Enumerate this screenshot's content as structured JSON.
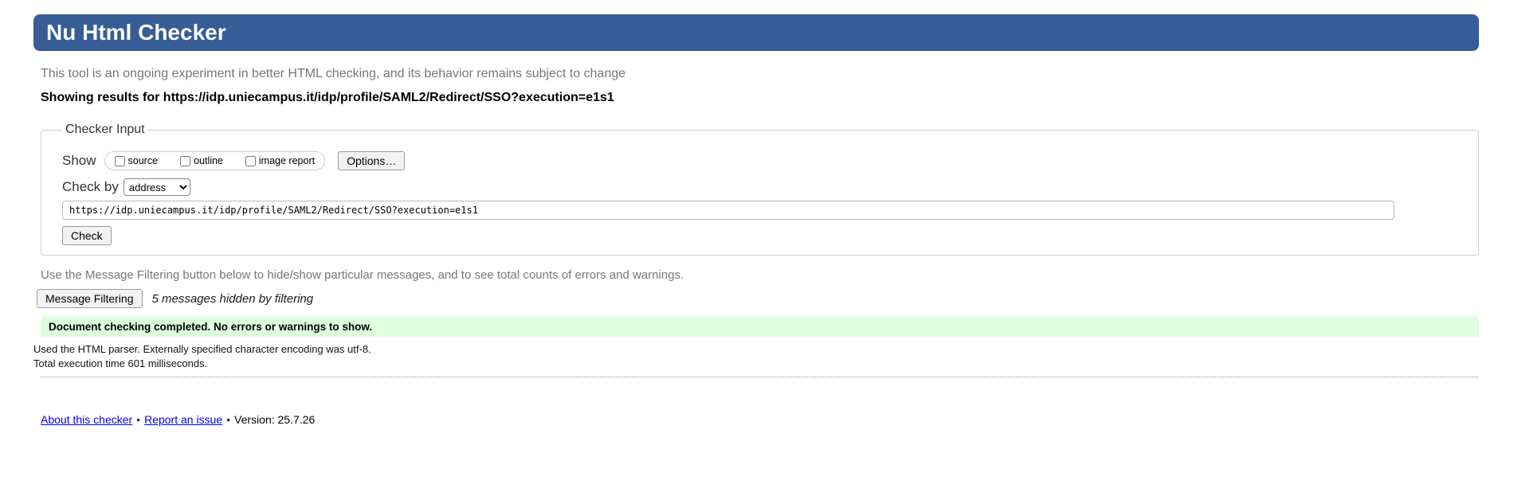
{
  "header": {
    "title": "Nu Html Checker",
    "bg_color": "#365d95"
  },
  "intro_text": "This tool is an ongoing experiment in better HTML checking, and its behavior remains subject to change",
  "results_heading": "Showing results for https://idp.uniecampus.it/idp/profile/SAML2/Redirect/SSO?execution=e1s1",
  "checker_input": {
    "legend": "Checker Input",
    "show_label": "Show",
    "show_options": [
      {
        "label": "source",
        "checked": false
      },
      {
        "label": "outline",
        "checked": false
      },
      {
        "label": "image report",
        "checked": false
      }
    ],
    "options_button_label": "Options…",
    "check_by_label": "Check by",
    "check_by_value": "address",
    "address_value": "https://idp.uniecampus.it/idp/profile/SAML2/Redirect/SSO?execution=e1s1",
    "check_button_label": "Check"
  },
  "filtering": {
    "help_text": "Use the Message Filtering button below to hide/show particular messages, and to see total counts of errors and warnings.",
    "button_label": "Message Filtering",
    "hidden_note": "5 messages hidden by filtering"
  },
  "result": {
    "success_message": "Document checking completed. No errors or warnings to show.",
    "bg_color": "#ddffdd"
  },
  "stats": [
    "Used the HTML parser. Externally specified character encoding was utf-8.",
    "Total execution time 601 milliseconds."
  ],
  "footer": {
    "about_link": "About this checker",
    "separator": "•",
    "report_link": "Report an issue",
    "version_text": "Version: 25.7.26"
  }
}
